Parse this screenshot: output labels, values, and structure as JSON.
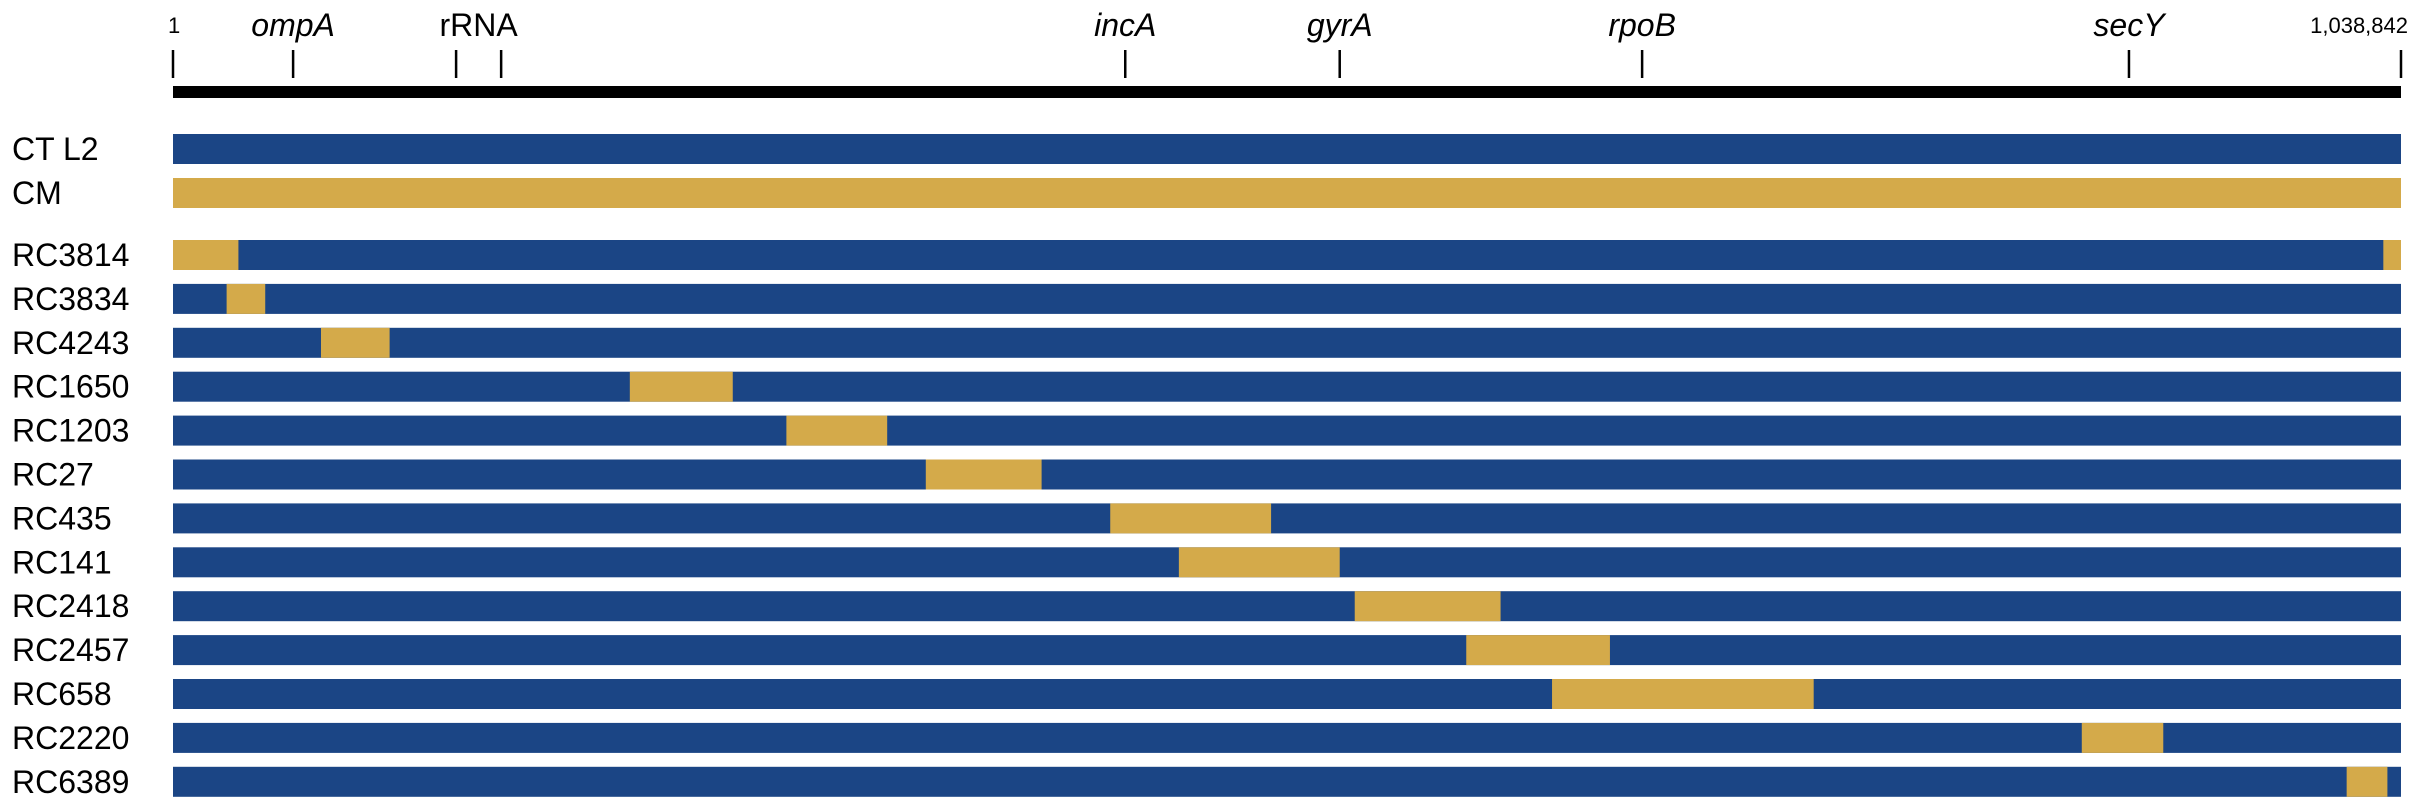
{
  "genome": {
    "start_label": "1",
    "end_label": "1,038,842",
    "length": 1038842
  },
  "colors": {
    "background_strain": "#1b4585",
    "recombinant_segment": "#d4aa4a",
    "axis": "#000000"
  },
  "loci": [
    {
      "name": "ompA",
      "italic": true,
      "pos": 56000
    },
    {
      "name": "rRNA",
      "italic": false,
      "pos": 132000,
      "pos2": 153000
    },
    {
      "name": "incA",
      "italic": true,
      "pos": 444000
    },
    {
      "name": "gyrA",
      "italic": true,
      "pos": 544000
    },
    {
      "name": "rpoB",
      "italic": true,
      "pos": 685000
    },
    {
      "name": "secY",
      "italic": true,
      "pos": 912000
    }
  ],
  "tracks": [
    {
      "name": "CT L2",
      "base": "blue",
      "segments": []
    },
    {
      "name": "CM",
      "base": "gold",
      "segments": []
    },
    {
      "name": "RC3814",
      "base": "blue",
      "segments": [
        [
          0,
          30500
        ],
        [
          1030600,
          1038842
        ]
      ]
    },
    {
      "name": "RC3834",
      "base": "blue",
      "segments": [
        [
          25000,
          43000
        ]
      ]
    },
    {
      "name": "RC4243",
      "base": "blue",
      "segments": [
        [
          69000,
          101000
        ]
      ]
    },
    {
      "name": "RC1650",
      "base": "blue",
      "segments": [
        [
          213000,
          261000
        ]
      ]
    },
    {
      "name": "RC1203",
      "base": "blue",
      "segments": [
        [
          286000,
          333000
        ]
      ]
    },
    {
      "name": "RC27",
      "base": "blue",
      "segments": [
        [
          351000,
          405000
        ]
      ]
    },
    {
      "name": "RC435",
      "base": "blue",
      "segments": [
        [
          437000,
          512000
        ]
      ]
    },
    {
      "name": "RC141",
      "base": "blue",
      "segments": [
        [
          469000,
          544000
        ]
      ]
    },
    {
      "name": "RC2418",
      "base": "blue",
      "segments": [
        [
          551000,
          619000
        ]
      ]
    },
    {
      "name": "RC2457",
      "base": "blue",
      "segments": [
        [
          603000,
          670000
        ]
      ]
    },
    {
      "name": "RC658",
      "base": "blue",
      "segments": [
        [
          643000,
          765000
        ]
      ]
    },
    {
      "name": "RC2220",
      "base": "blue",
      "segments": [
        [
          890000,
          928000
        ]
      ]
    },
    {
      "name": "RC6389",
      "base": "blue",
      "segments": [
        [
          1013500,
          1032500
        ]
      ]
    }
  ]
}
